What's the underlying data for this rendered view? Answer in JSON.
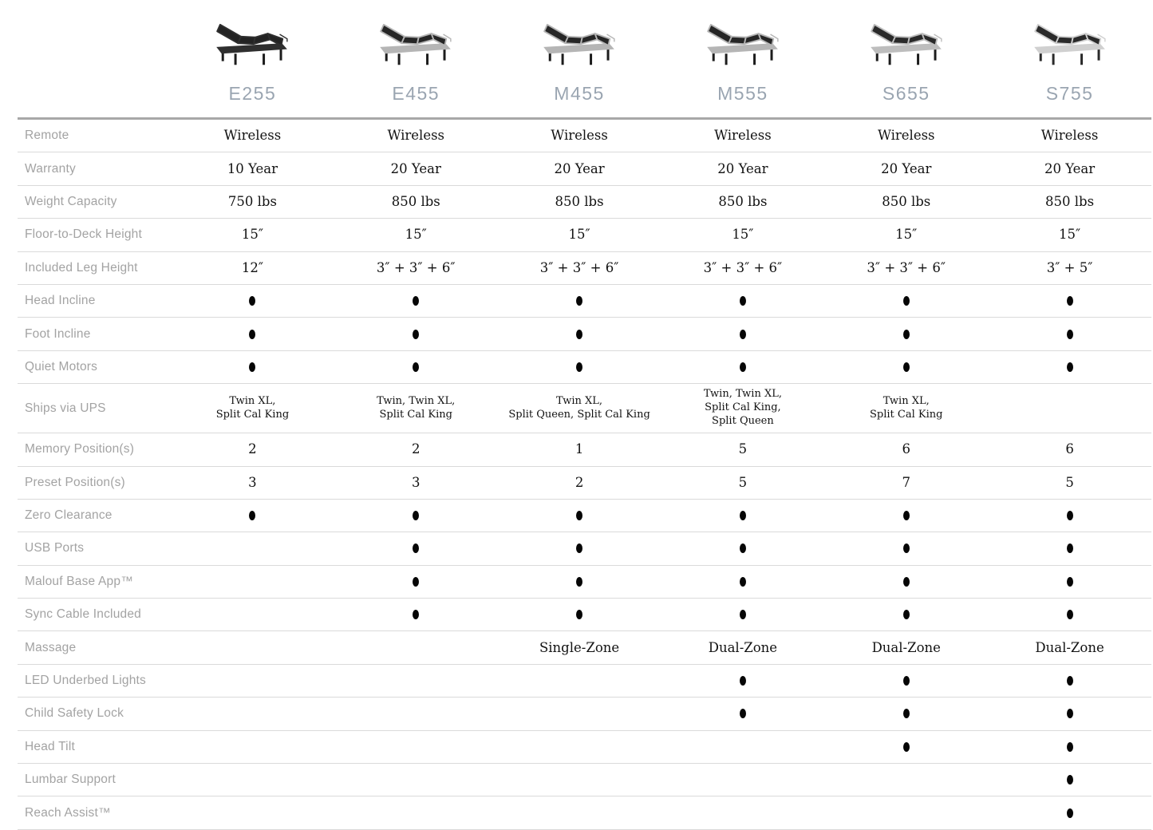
{
  "header_color": "#9aa5b1",
  "columns": [
    {
      "model": "E255",
      "bed": {
        "frame": "#2f2f2f",
        "mattress": "#232323",
        "legs": "#1c1c1c"
      }
    },
    {
      "model": "E455",
      "bed": {
        "frame": "#b5b5b5",
        "mattress": "#262626",
        "legs": "#1c1c1c"
      }
    },
    {
      "model": "M455",
      "bed": {
        "frame": "#b5b5b5",
        "mattress": "#262626",
        "legs": "#1c1c1c"
      }
    },
    {
      "model": "M555",
      "bed": {
        "frame": "#b5b5b5",
        "mattress": "#262626",
        "legs": "#1c1c1c"
      }
    },
    {
      "model": "S655",
      "bed": {
        "frame": "#bdbdbd",
        "mattress": "#2a2a2a",
        "legs": "#1c1c1c"
      }
    },
    {
      "model": "S755",
      "bed": {
        "frame": "#d0d0d0",
        "mattress": "#2a2a2a",
        "legs": "#2a2a2a"
      }
    }
  ],
  "rows": [
    {
      "label": "Remote",
      "type": "text",
      "values": [
        "Wireless",
        "Wireless",
        "Wireless",
        "Wireless",
        "Wireless",
        "Wireless"
      ]
    },
    {
      "label": "Warranty",
      "type": "text",
      "values": [
        "10 Year",
        "20 Year",
        "20 Year",
        "20 Year",
        "20 Year",
        "20 Year"
      ]
    },
    {
      "label": "Weight Capacity",
      "type": "text",
      "values": [
        "750 lbs",
        "850 lbs",
        "850 lbs",
        "850 lbs",
        "850 lbs",
        "850 lbs"
      ]
    },
    {
      "label": "Floor-to-Deck Height",
      "type": "text",
      "values": [
        "15″",
        "15″",
        "15″",
        "15″",
        "15″",
        "15″"
      ]
    },
    {
      "label": "Included Leg Height",
      "type": "text",
      "values": [
        "12″",
        "3″ + 3″ + 6″",
        "3″ + 3″ + 6″",
        "3″ + 3″ + 6″",
        "3″ + 3″ + 6″",
        "3″ + 5″"
      ]
    },
    {
      "label": "Head Incline",
      "type": "dot",
      "values": [
        1,
        1,
        1,
        1,
        1,
        1
      ]
    },
    {
      "label": "Foot Incline",
      "type": "dot",
      "values": [
        1,
        1,
        1,
        1,
        1,
        1
      ]
    },
    {
      "label": "Quiet Motors",
      "type": "dot",
      "values": [
        1,
        1,
        1,
        1,
        1,
        1
      ]
    },
    {
      "label": "Ships via UPS",
      "type": "text",
      "small": true,
      "values": [
        "Twin XL,\nSplit Cal King",
        "Twin, Twin XL,\nSplit Cal King",
        "Twin XL,\nSplit Queen, Split Cal King",
        "Twin, Twin XL,\nSplit Cal King,\nSplit Queen",
        "Twin XL,\nSplit Cal King",
        ""
      ]
    },
    {
      "label": "Memory Position(s)",
      "type": "text",
      "values": [
        "2",
        "2",
        "1",
        "5",
        "6",
        "6"
      ]
    },
    {
      "label": "Preset Position(s)",
      "type": "text",
      "values": [
        "3",
        "3",
        "2",
        "5",
        "7",
        "5"
      ]
    },
    {
      "label": "Zero Clearance",
      "type": "dot",
      "values": [
        1,
        1,
        1,
        1,
        1,
        1
      ]
    },
    {
      "label": "USB Ports",
      "type": "dot",
      "values": [
        0,
        1,
        1,
        1,
        1,
        1
      ]
    },
    {
      "label": "Malouf Base App™",
      "type": "dot",
      "values": [
        0,
        1,
        1,
        1,
        1,
        1
      ]
    },
    {
      "label": "Sync Cable Included",
      "type": "dot",
      "values": [
        0,
        1,
        1,
        1,
        1,
        1
      ]
    },
    {
      "label": "Massage",
      "type": "text",
      "values": [
        "",
        "",
        "Single-Zone",
        "Dual-Zone",
        "Dual-Zone",
        "Dual-Zone"
      ]
    },
    {
      "label": "LED Underbed Lights",
      "type": "dot",
      "values": [
        0,
        0,
        0,
        1,
        1,
        1
      ]
    },
    {
      "label": "Child Safety Lock",
      "type": "dot",
      "values": [
        0,
        0,
        0,
        1,
        1,
        1
      ]
    },
    {
      "label": "Head Tilt",
      "type": "dot",
      "values": [
        0,
        0,
        0,
        0,
        1,
        1
      ]
    },
    {
      "label": "Lumbar Support",
      "type": "dot",
      "values": [
        0,
        0,
        0,
        0,
        0,
        1
      ]
    },
    {
      "label": "Reach Assist™",
      "type": "dot",
      "values": [
        0,
        0,
        0,
        0,
        0,
        1
      ]
    }
  ]
}
